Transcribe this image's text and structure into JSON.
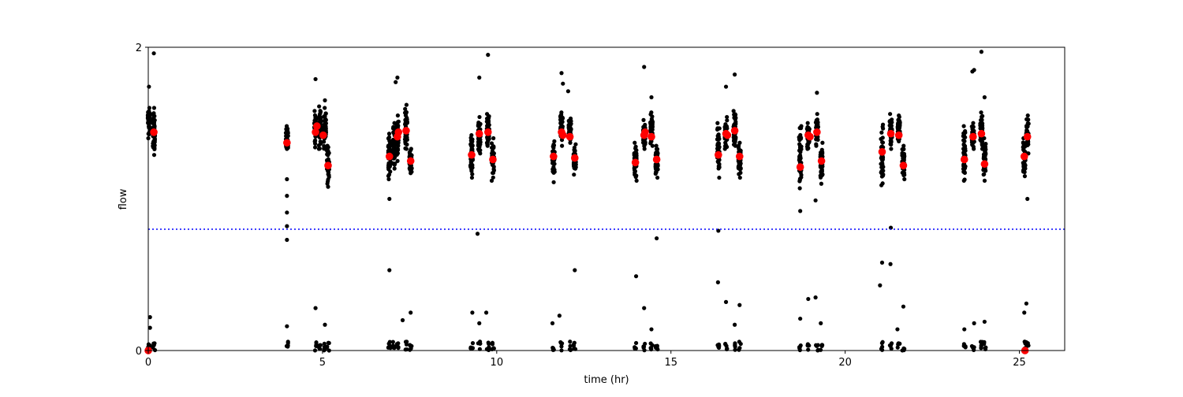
{
  "chart_data": {
    "type": "scatter",
    "title": "",
    "xlabel": "time (hr)",
    "ylabel": "flow",
    "xlim": [
      0,
      26.3
    ],
    "ylim": [
      0,
      2
    ],
    "x_ticks": [
      0,
      5,
      10,
      15,
      20,
      25
    ],
    "y_ticks": [
      0,
      2
    ],
    "grid": false,
    "threshold_line": {
      "y": 0.8,
      "color": "#0000ff",
      "style": "dotted"
    },
    "colors": {
      "samples": "#000000",
      "means": "#ff0000"
    },
    "sample_columns": [
      {
        "t": 0.02,
        "lo": 1.4,
        "hi": 1.6
      },
      {
        "t": 0.16,
        "lo": 1.29,
        "hi": 1.6
      },
      {
        "t": 3.98,
        "lo": 1.33,
        "hi": 1.48
      },
      {
        "t": 4.8,
        "lo": 1.34,
        "hi": 1.58
      },
      {
        "t": 4.92,
        "lo": 1.33,
        "hi": 1.61
      },
      {
        "t": 5.07,
        "lo": 1.33,
        "hi": 1.6
      },
      {
        "t": 5.16,
        "lo": 1.08,
        "hi": 1.35
      },
      {
        "t": 6.92,
        "lo": 1.13,
        "hi": 1.43
      },
      {
        "t": 7.05,
        "lo": 1.2,
        "hi": 1.5
      },
      {
        "t": 7.15,
        "lo": 1.25,
        "hi": 1.55
      },
      {
        "t": 7.4,
        "lo": 1.33,
        "hi": 1.62
      },
      {
        "t": 7.53,
        "lo": 1.17,
        "hi": 1.33
      },
      {
        "t": 9.28,
        "lo": 1.14,
        "hi": 1.42
      },
      {
        "t": 9.5,
        "lo": 1.3,
        "hi": 1.54
      },
      {
        "t": 9.75,
        "lo": 1.35,
        "hi": 1.56
      },
      {
        "t": 9.89,
        "lo": 1.12,
        "hi": 1.4
      },
      {
        "t": 11.63,
        "lo": 1.11,
        "hi": 1.38
      },
      {
        "t": 11.86,
        "lo": 1.35,
        "hi": 1.57
      },
      {
        "t": 12.1,
        "lo": 1.37,
        "hi": 1.53
      },
      {
        "t": 12.24,
        "lo": 1.16,
        "hi": 1.36
      },
      {
        "t": 13.98,
        "lo": 1.12,
        "hi": 1.37
      },
      {
        "t": 14.23,
        "lo": 1.33,
        "hi": 1.52
      },
      {
        "t": 14.44,
        "lo": 1.35,
        "hi": 1.57
      },
      {
        "t": 14.59,
        "lo": 1.14,
        "hi": 1.35
      },
      {
        "t": 16.36,
        "lo": 1.14,
        "hi": 1.5
      },
      {
        "t": 16.58,
        "lo": 1.33,
        "hi": 1.54
      },
      {
        "t": 16.83,
        "lo": 1.35,
        "hi": 1.58
      },
      {
        "t": 16.97,
        "lo": 1.14,
        "hi": 1.37
      },
      {
        "t": 18.71,
        "lo": 1.07,
        "hi": 1.48
      },
      {
        "t": 18.94,
        "lo": 1.33,
        "hi": 1.5
      },
      {
        "t": 19.19,
        "lo": 1.35,
        "hi": 1.56
      },
      {
        "t": 19.32,
        "lo": 1.1,
        "hi": 1.37
      },
      {
        "t": 21.06,
        "lo": 1.09,
        "hi": 1.49
      },
      {
        "t": 21.31,
        "lo": 1.33,
        "hi": 1.56
      },
      {
        "t": 21.54,
        "lo": 1.38,
        "hi": 1.55
      },
      {
        "t": 21.67,
        "lo": 1.13,
        "hi": 1.35
      },
      {
        "t": 23.42,
        "lo": 1.12,
        "hi": 1.48
      },
      {
        "t": 23.67,
        "lo": 1.33,
        "hi": 1.5
      },
      {
        "t": 23.91,
        "lo": 1.33,
        "hi": 1.57
      },
      {
        "t": 24.0,
        "lo": 1.12,
        "hi": 1.4
      },
      {
        "t": 25.14,
        "lo": 1.15,
        "hi": 1.4
      },
      {
        "t": 25.23,
        "lo": 1.3,
        "hi": 1.55
      }
    ],
    "near_zero_max": 0.06,
    "sample_outliers": [
      [
        0.02,
        1.74
      ],
      [
        0.16,
        1.96
      ],
      [
        3.98,
        1.13
      ],
      [
        3.98,
        1.02
      ],
      [
        3.98,
        0.91
      ],
      [
        3.98,
        0.82
      ],
      [
        3.98,
        0.73
      ],
      [
        4.8,
        1.79
      ],
      [
        5.07,
        1.65
      ],
      [
        6.92,
        1.0
      ],
      [
        7.15,
        1.8
      ],
      [
        7.1,
        1.77
      ],
      [
        9.5,
        1.8
      ],
      [
        9.75,
        1.95
      ],
      [
        9.45,
        0.77
      ],
      [
        11.86,
        1.83
      ],
      [
        11.9,
        1.76
      ],
      [
        12.05,
        1.71
      ],
      [
        14.0,
        0.49
      ],
      [
        14.23,
        1.87
      ],
      [
        14.44,
        1.67
      ],
      [
        14.59,
        0.74
      ],
      [
        16.36,
        0.79
      ],
      [
        16.35,
        0.45
      ],
      [
        16.58,
        1.74
      ],
      [
        16.83,
        1.82
      ],
      [
        18.71,
        0.92
      ],
      [
        19.19,
        1.7
      ],
      [
        19.15,
        0.99
      ],
      [
        21.31,
        0.81
      ],
      [
        21.06,
        0.58
      ],
      [
        21.3,
        0.57
      ],
      [
        21.0,
        0.43
      ],
      [
        23.7,
        1.85
      ],
      [
        23.65,
        1.84
      ],
      [
        23.91,
        1.97
      ],
      [
        24.0,
        1.67
      ],
      [
        25.23,
        1.0
      ],
      [
        0.05,
        0.22
      ],
      [
        0.05,
        0.15
      ],
      [
        3.98,
        0.16
      ],
      [
        4.8,
        0.28
      ],
      [
        5.07,
        0.17
      ],
      [
        6.92,
        0.53
      ],
      [
        7.53,
        0.25
      ],
      [
        7.3,
        0.2
      ],
      [
        9.3,
        0.25
      ],
      [
        9.7,
        0.25
      ],
      [
        9.5,
        0.18
      ],
      [
        11.8,
        0.23
      ],
      [
        11.6,
        0.18
      ],
      [
        12.24,
        0.53
      ],
      [
        14.23,
        0.28
      ],
      [
        14.44,
        0.14
      ],
      [
        16.58,
        0.32
      ],
      [
        16.83,
        0.17
      ],
      [
        16.97,
        0.3
      ],
      [
        18.71,
        0.21
      ],
      [
        18.94,
        0.34
      ],
      [
        19.15,
        0.35
      ],
      [
        19.3,
        0.18
      ],
      [
        21.67,
        0.29
      ],
      [
        21.5,
        0.14
      ],
      [
        23.42,
        0.14
      ],
      [
        23.7,
        0.18
      ],
      [
        24.0,
        0.19
      ],
      [
        25.2,
        0.31
      ],
      [
        25.14,
        0.25
      ]
    ],
    "means": [
      [
        0.0,
        0.0
      ],
      [
        0.16,
        1.44
      ],
      [
        3.98,
        1.37
      ],
      [
        4.8,
        1.44
      ],
      [
        4.84,
        1.48
      ],
      [
        5.02,
        1.42
      ],
      [
        5.16,
        1.22
      ],
      [
        6.92,
        1.28
      ],
      [
        7.15,
        1.41
      ],
      [
        7.18,
        1.44
      ],
      [
        7.4,
        1.45
      ],
      [
        7.53,
        1.25
      ],
      [
        9.28,
        1.29
      ],
      [
        9.5,
        1.43
      ],
      [
        9.75,
        1.44
      ],
      [
        9.89,
        1.26
      ],
      [
        11.63,
        1.28
      ],
      [
        11.86,
        1.44
      ],
      [
        11.9,
        1.42
      ],
      [
        12.1,
        1.41
      ],
      [
        12.24,
        1.27
      ],
      [
        13.98,
        1.24
      ],
      [
        14.23,
        1.42
      ],
      [
        14.26,
        1.44
      ],
      [
        14.44,
        1.41
      ],
      [
        14.59,
        1.26
      ],
      [
        16.36,
        1.29
      ],
      [
        16.58,
        1.43
      ],
      [
        16.62,
        1.42
      ],
      [
        16.83,
        1.45
      ],
      [
        16.97,
        1.28
      ],
      [
        18.71,
        1.21
      ],
      [
        18.94,
        1.42
      ],
      [
        18.99,
        1.41
      ],
      [
        19.19,
        1.44
      ],
      [
        19.32,
        1.25
      ],
      [
        21.06,
        1.31
      ],
      [
        21.31,
        1.43
      ],
      [
        21.54,
        1.42
      ],
      [
        21.67,
        1.22
      ],
      [
        23.42,
        1.26
      ],
      [
        23.67,
        1.41
      ],
      [
        23.91,
        1.43
      ],
      [
        24.0,
        1.23
      ],
      [
        25.14,
        1.28
      ],
      [
        25.23,
        1.41
      ],
      [
        25.16,
        0.0
      ]
    ]
  }
}
